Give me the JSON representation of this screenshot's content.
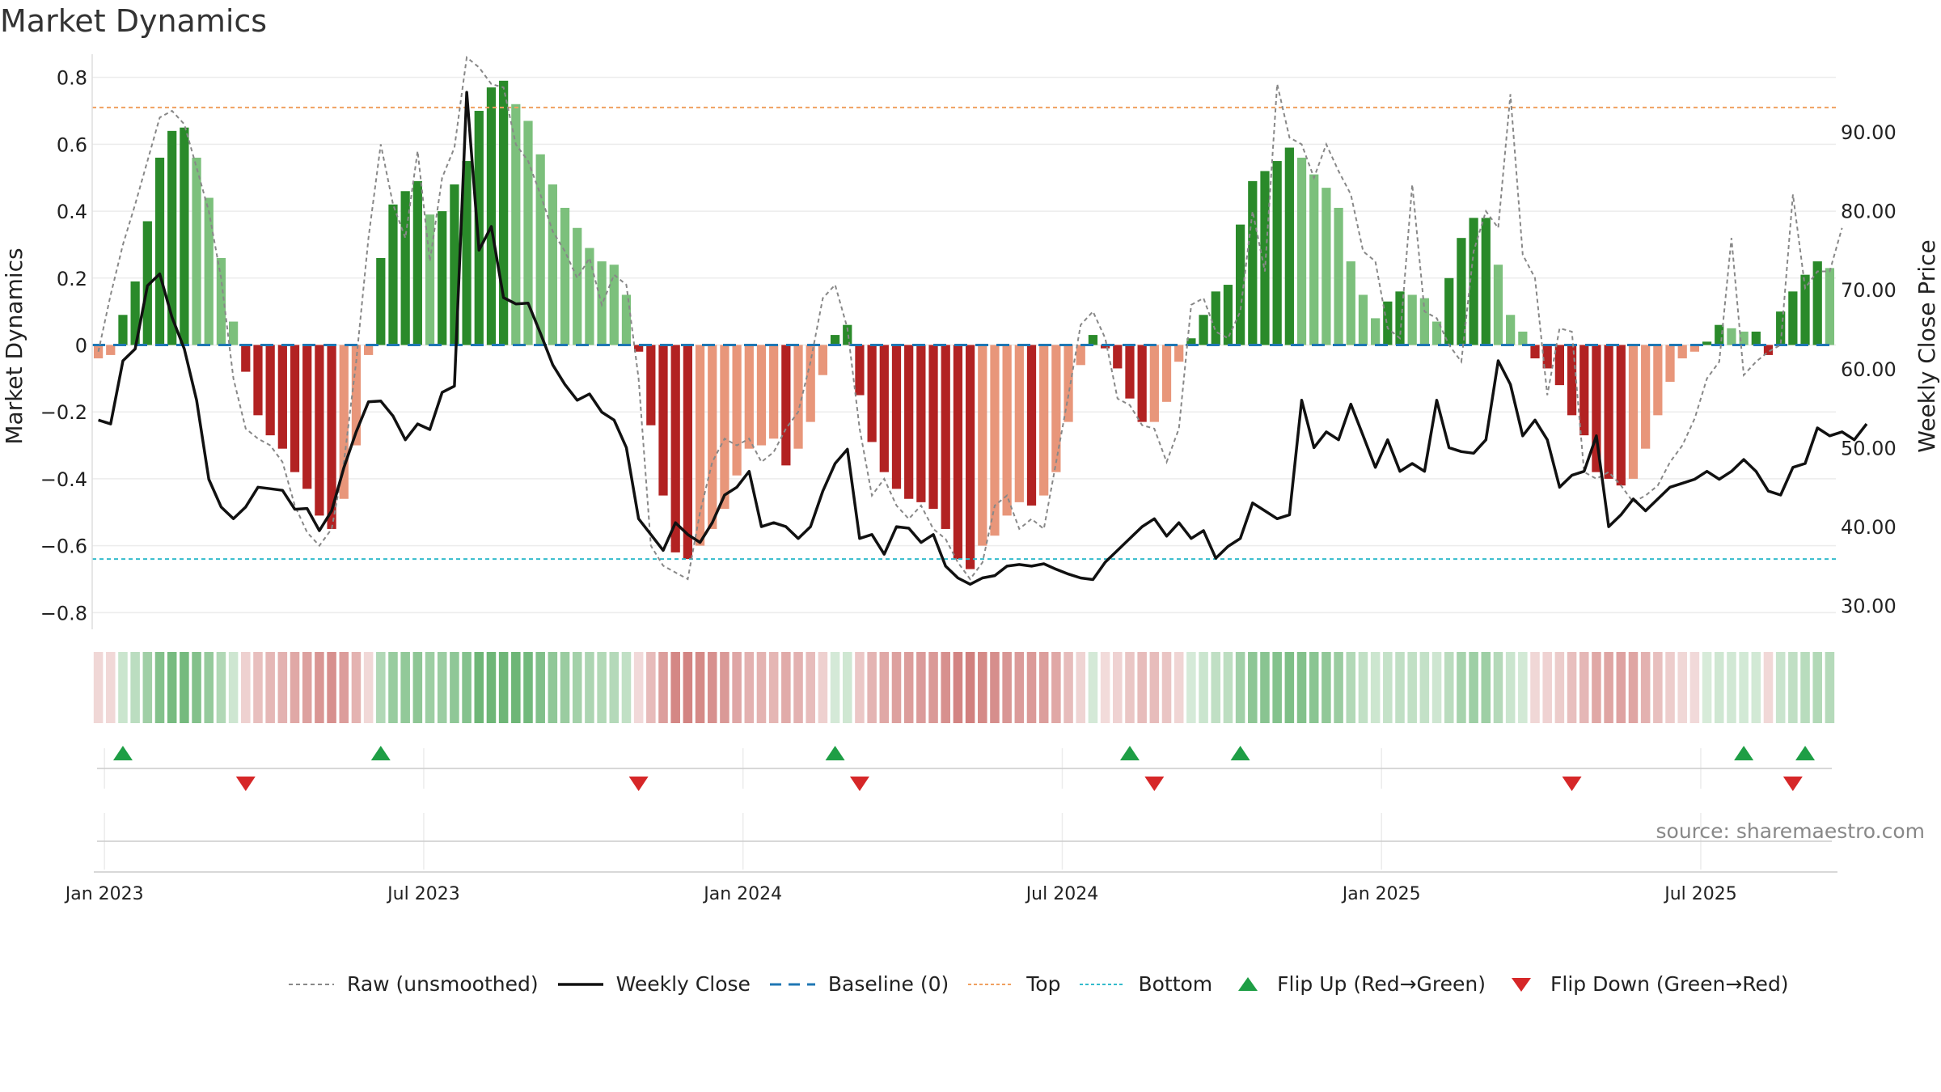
{
  "title": "Market Dynamics",
  "source": "source: sharemaestro.com",
  "legend": {
    "raw": "Raw (unsmoothed)",
    "close": "Weekly Close",
    "baseline": "Baseline (0)",
    "top": "Top",
    "bottom": "Bottom",
    "flip_up": "Flip Up (Red→Green)",
    "flip_down": "Flip Down (Green→Red)"
  },
  "colors": {
    "strong_green": "#2a8a2a",
    "light_green": "#7cc07c",
    "strong_red": "#b22222",
    "light_red": "#e8967a",
    "raw_line": "#888888",
    "close_line": "#111111",
    "baseline": "#1f77b4",
    "top": "#f0a060",
    "bottom": "#33bbcc",
    "flip_up": "#1e9e45",
    "flip_down": "#d62728"
  },
  "chart_data": {
    "type": "bar",
    "title": "Market Dynamics",
    "ylabel_left": "Market Dynamics",
    "ylabel_right": "Weekly Close Price",
    "ylim_left": [
      -0.85,
      0.85
    ],
    "ylim_right": [
      27,
      99
    ],
    "left_ticks": [
      "0.8",
      "0.6",
      "0.4",
      "0.2",
      "0",
      "−0.2",
      "−0.4",
      "−0.6",
      "−0.8"
    ],
    "left_tick_values": [
      0.8,
      0.6,
      0.4,
      0.2,
      0,
      -0.2,
      -0.4,
      -0.6,
      -0.8
    ],
    "right_ticks": [
      "90.00",
      "80.00",
      "70.00",
      "60.00",
      "50.00",
      "40.00",
      "30.00"
    ],
    "right_tick_values": [
      90,
      80,
      70,
      60,
      50,
      40,
      30
    ],
    "x_ticks": [
      "Jan 2023",
      "Jul 2023",
      "Jan 2024",
      "Jul 2024",
      "Jan 2025",
      "Jul 2025"
    ],
    "x_tick_weeks": [
      0.5,
      26.5,
      52.5,
      78.5,
      104.5,
      130.5
    ],
    "top_line": 0.71,
    "bottom_line": -0.64,
    "baseline": 0,
    "grid": true,
    "legend_position": "bottom",
    "dynamics": [
      -0.04,
      -0.03,
      0.09,
      0.19,
      0.37,
      0.56,
      0.64,
      0.65,
      0.56,
      0.44,
      0.26,
      0.07,
      -0.08,
      -0.21,
      -0.27,
      -0.31,
      -0.38,
      -0.43,
      -0.51,
      -0.55,
      -0.46,
      -0.3,
      -0.03,
      0.26,
      0.42,
      0.46,
      0.49,
      0.39,
      0.4,
      0.48,
      0.55,
      0.7,
      0.77,
      0.79,
      0.72,
      0.67,
      0.57,
      0.48,
      0.41,
      0.35,
      0.29,
      0.25,
      0.24,
      0.15,
      -0.02,
      -0.24,
      -0.45,
      -0.62,
      -0.64,
      -0.6,
      -0.55,
      -0.49,
      -0.39,
      -0.31,
      -0.3,
      -0.28,
      -0.36,
      -0.31,
      -0.23,
      -0.09,
      0.03,
      0.06,
      -0.15,
      -0.29,
      -0.38,
      -0.43,
      -0.46,
      -0.47,
      -0.49,
      -0.55,
      -0.64,
      -0.67,
      -0.6,
      -0.57,
      -0.51,
      -0.47,
      -0.48,
      -0.45,
      -0.38,
      -0.23,
      -0.06,
      0.03,
      -0.01,
      -0.07,
      -0.16,
      -0.23,
      -0.23,
      -0.17,
      -0.05,
      0.02,
      0.09,
      0.16,
      0.18,
      0.36,
      0.49,
      0.52,
      0.55,
      0.59,
      0.56,
      0.51,
      0.47,
      0.41,
      0.25,
      0.15,
      0.08,
      0.13,
      0.16,
      0.15,
      0.14,
      0.07,
      0.2,
      0.32,
      0.38,
      0.38,
      0.24,
      0.09,
      0.04,
      -0.04,
      -0.07,
      -0.12,
      -0.21,
      -0.27,
      -0.38,
      -0.4,
      -0.42,
      -0.4,
      -0.31,
      -0.21,
      -0.11,
      -0.04,
      -0.02,
      0.01,
      0.06,
      0.05,
      0.04,
      0.04,
      -0.03,
      0.1,
      0.16,
      0.21,
      0.25,
      0.23
    ],
    "raw": [
      -0.02,
      0.15,
      0.3,
      0.42,
      0.55,
      0.68,
      0.7,
      0.66,
      0.53,
      0.4,
      0.2,
      -0.1,
      -0.25,
      -0.28,
      -0.3,
      -0.35,
      -0.48,
      -0.56,
      -0.6,
      -0.55,
      -0.35,
      -0.05,
      0.32,
      0.6,
      0.42,
      0.32,
      0.58,
      0.25,
      0.5,
      0.59,
      0.86,
      0.83,
      0.78,
      0.77,
      0.6,
      0.55,
      0.45,
      0.34,
      0.28,
      0.2,
      0.26,
      0.12,
      0.21,
      0.18,
      -0.1,
      -0.6,
      -0.66,
      -0.68,
      -0.7,
      -0.5,
      -0.35,
      -0.28,
      -0.3,
      -0.28,
      -0.35,
      -0.32,
      -0.25,
      -0.2,
      -0.05,
      0.14,
      0.18,
      0.05,
      -0.25,
      -0.45,
      -0.4,
      -0.48,
      -0.52,
      -0.48,
      -0.55,
      -0.58,
      -0.65,
      -0.7,
      -0.65,
      -0.48,
      -0.45,
      -0.55,
      -0.52,
      -0.55,
      -0.35,
      -0.15,
      0.06,
      0.1,
      0.02,
      -0.16,
      -0.18,
      -0.24,
      -0.25,
      -0.35,
      -0.25,
      0.12,
      0.14,
      0.04,
      0.02,
      0.1,
      0.4,
      0.22,
      0.78,
      0.62,
      0.6,
      0.5,
      0.6,
      0.52,
      0.45,
      0.28,
      0.25,
      0.05,
      0.02,
      0.48,
      0.1,
      0.08,
      0.0,
      -0.05,
      0.28,
      0.4,
      0.35,
      0.75,
      0.27,
      0.2,
      -0.15,
      0.05,
      0.04,
      -0.38,
      -0.4,
      -0.38,
      -0.42,
      -0.47,
      -0.45,
      -0.42,
      -0.35,
      -0.3,
      -0.22,
      -0.1,
      -0.05,
      0.32,
      -0.09,
      -0.05,
      -0.02,
      0.0,
      0.45,
      0.17,
      0.22,
      0.22,
      0.35
    ],
    "weekly_close": [
      53.5,
      53.0,
      61.0,
      62.5,
      70.5,
      72.0,
      66.5,
      62.5,
      56.0,
      46.0,
      42.5,
      41.0,
      42.5,
      45.0,
      44.8,
      44.6,
      42.2,
      42.3,
      39.5,
      42.0,
      47.5,
      52.0,
      55.8,
      55.9,
      54.0,
      51.0,
      53.0,
      52.3,
      57.0,
      57.8,
      95.0,
      75.0,
      78.0,
      69.0,
      68.2,
      68.3,
      64.5,
      60.5,
      58.0,
      56.0,
      56.8,
      54.5,
      53.5,
      50.0,
      41.0,
      39.0,
      37.0,
      40.5,
      39.0,
      38.0,
      40.5,
      44.0,
      45.0,
      47.0,
      40.0,
      40.5,
      40.0,
      38.5,
      40.0,
      44.5,
      48.0,
      49.8,
      38.5,
      39.0,
      36.5,
      40.0,
      39.8,
      38.0,
      39.0,
      35.0,
      33.5,
      32.7,
      33.5,
      33.8,
      35.0,
      35.2,
      35.0,
      35.3,
      34.6,
      34.0,
      33.5,
      33.3,
      35.5,
      37.0,
      38.5,
      40.0,
      41.0,
      38.8,
      40.5,
      38.5,
      39.5,
      36.0,
      37.5,
      38.5,
      43.0,
      42.0,
      41.0,
      41.5,
      56.0,
      50.0,
      52.0,
      51.0,
      55.5,
      51.5,
      47.5,
      51.0,
      47.0,
      48.0,
      47.0,
      56.0,
      50.0,
      49.5,
      49.3,
      51.0,
      61.0,
      58.0,
      51.5,
      53.5,
      51.0,
      45.0,
      46.5,
      47.0,
      51.5,
      40.0,
      41.5,
      43.5,
      42.0,
      43.5,
      45.0,
      45.5,
      46.0,
      47.0,
      46.0,
      47.0,
      48.5,
      47.0,
      44.5,
      44.0,
      47.5,
      48.0,
      52.5,
      51.5,
      52.0,
      51.0,
      53.0
    ],
    "flip_up_weeks": [
      2,
      23,
      60,
      84,
      93,
      134,
      139
    ],
    "flip_down_weeks": [
      12,
      44,
      62,
      86,
      120,
      138
    ]
  }
}
